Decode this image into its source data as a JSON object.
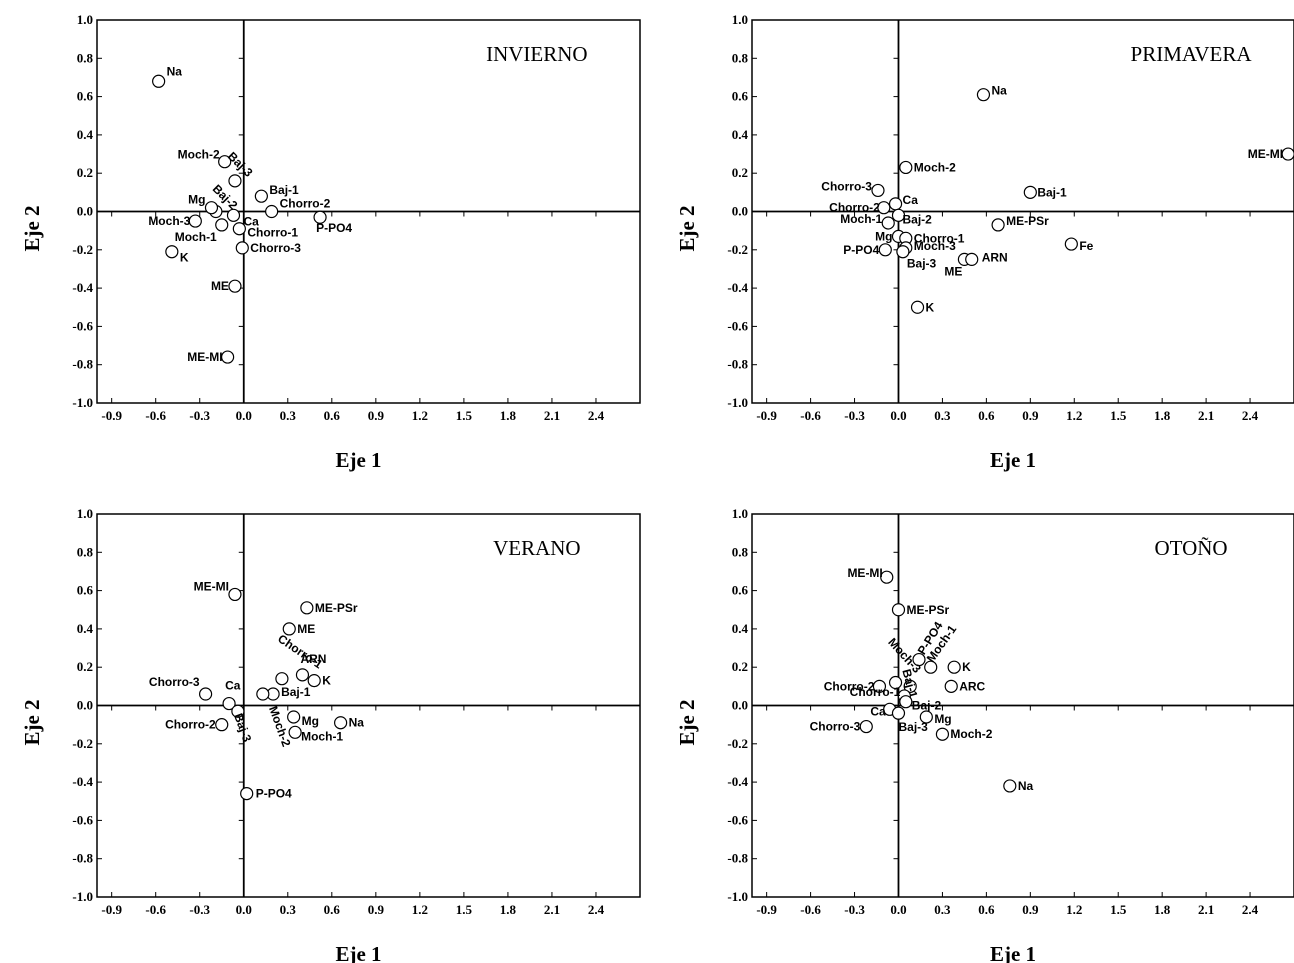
{
  "chart_data": [
    {
      "type": "scatter",
      "title": "INVIERNO",
      "xlabel": "Eje 1",
      "ylabel": "Eje 2",
      "xlim": [
        -1.0,
        2.7
      ],
      "ylim": [
        -1.0,
        1.0
      ],
      "x_ticks": [
        "-0.9",
        "-0.6",
        "-0.3",
        "0.0",
        "0.3",
        "0.6",
        "0.9",
        "1.2",
        "1.5",
        "1.8",
        "2.1",
        "2.4"
      ],
      "y_ticks": [
        "1.0",
        "0.8",
        "0.6",
        "0.4",
        "0.2",
        "0.0",
        "-0.2",
        "-0.4",
        "-0.6",
        "-0.8",
        "-1.0"
      ],
      "points": [
        {
          "label": "Na",
          "x": -0.58,
          "y": 0.68
        },
        {
          "label": "Moch-2",
          "x": -0.13,
          "y": 0.26
        },
        {
          "label": "Baj-3",
          "x": -0.06,
          "y": 0.16
        },
        {
          "label": "Baj-1",
          "x": 0.12,
          "y": 0.08
        },
        {
          "label": "Baj-2",
          "x": -0.19,
          "y": 0.0
        },
        {
          "label": "Mg",
          "x": -0.22,
          "y": 0.02
        },
        {
          "label": "Chorro-2",
          "x": 0.19,
          "y": 0.0
        },
        {
          "label": "Ca",
          "x": -0.07,
          "y": -0.02
        },
        {
          "label": "Moch-3",
          "x": -0.33,
          "y": -0.05
        },
        {
          "label": "Moch-1",
          "x": -0.15,
          "y": -0.07
        },
        {
          "label": "Chorro-1",
          "x": -0.03,
          "y": -0.09
        },
        {
          "label": "P-PO4",
          "x": 0.52,
          "y": -0.03
        },
        {
          "label": "Chorro-3",
          "x": -0.01,
          "y": -0.19
        },
        {
          "label": "K",
          "x": -0.49,
          "y": -0.21
        },
        {
          "label": "ME",
          "x": -0.06,
          "y": -0.39
        },
        {
          "label": "ME-MI",
          "x": -0.11,
          "y": -0.76
        }
      ]
    },
    {
      "type": "scatter",
      "title": "PRIMAVERA",
      "xlabel": "Eje 1",
      "ylabel": "Eje 2",
      "xlim": [
        -1.0,
        2.7
      ],
      "ylim": [
        -1.0,
        1.0
      ],
      "x_ticks": [
        "-0.9",
        "-0.6",
        "-0.3",
        "0.0",
        "0.3",
        "0.6",
        "0.9",
        "1.2",
        "1.5",
        "1.8",
        "2.1",
        "2.4"
      ],
      "y_ticks": [
        "1.0",
        "0.8",
        "0.6",
        "0.4",
        "0.2",
        "0.0",
        "-0.2",
        "-0.4",
        "-0.6",
        "-0.8",
        "-1.0"
      ],
      "points": [
        {
          "label": "Na",
          "x": 0.58,
          "y": 0.61
        },
        {
          "label": "ME-MI",
          "x": 2.66,
          "y": 0.3
        },
        {
          "label": "Moch-2",
          "x": 0.05,
          "y": 0.23
        },
        {
          "label": "Chorro-3",
          "x": -0.14,
          "y": 0.11
        },
        {
          "label": "Baj-1",
          "x": 0.9,
          "y": 0.1
        },
        {
          "label": "Chorro-2",
          "x": -0.1,
          "y": 0.02
        },
        {
          "label": "Ca",
          "x": -0.02,
          "y": 0.04
        },
        {
          "label": "Moch-1",
          "x": -0.07,
          "y": -0.06
        },
        {
          "label": "Baj-2",
          "x": 0.0,
          "y": -0.02
        },
        {
          "label": "ME-PSr",
          "x": 0.68,
          "y": -0.07
        },
        {
          "label": "Mg",
          "x": 0.0,
          "y": -0.13
        },
        {
          "label": "Chorro-1",
          "x": 0.05,
          "y": -0.14
        },
        {
          "label": "Moch-3",
          "x": 0.05,
          "y": -0.19
        },
        {
          "label": "P-PO4",
          "x": -0.09,
          "y": -0.2
        },
        {
          "label": "Baj-3",
          "x": 0.03,
          "y": -0.21
        },
        {
          "label": "ME",
          "x": 0.45,
          "y": -0.25
        },
        {
          "label": "ARN",
          "x": 0.5,
          "y": -0.25
        },
        {
          "label": "Fe",
          "x": 1.18,
          "y": -0.17
        },
        {
          "label": "K",
          "x": 0.13,
          "y": -0.5
        }
      ]
    },
    {
      "type": "scatter",
      "title": "VERANO",
      "xlabel": "Eje 1",
      "ylabel": "Eje 2",
      "xlim": [
        -1.0,
        2.7
      ],
      "ylim": [
        -1.0,
        1.0
      ],
      "x_ticks": [
        "-0.9",
        "-0.6",
        "-0.3",
        "0.0",
        "0.3",
        "0.6",
        "0.9",
        "1.2",
        "1.5",
        "1.8",
        "2.1",
        "2.4"
      ],
      "y_ticks": [
        "1.0",
        "0.8",
        "0.6",
        "0.4",
        "0.2",
        "0.0",
        "-0.2",
        "-0.4",
        "-0.6",
        "-0.8",
        "-1.0"
      ],
      "points": [
        {
          "label": "ME-MI",
          "x": -0.06,
          "y": 0.58
        },
        {
          "label": "ME-PSr",
          "x": 0.43,
          "y": 0.51
        },
        {
          "label": "ME",
          "x": 0.31,
          "y": 0.4
        },
        {
          "label": "Chorro-1",
          "x": 0.26,
          "y": 0.14
        },
        {
          "label": "ARN",
          "x": 0.4,
          "y": 0.16
        },
        {
          "label": "K",
          "x": 0.48,
          "y": 0.13
        },
        {
          "label": "Chorro-3",
          "x": -0.26,
          "y": 0.06
        },
        {
          "label": "Ca",
          "x": -0.1,
          "y": 0.01
        },
        {
          "label": "Baj-1",
          "x": 0.2,
          "y": 0.06
        },
        {
          "label": "Baj-3",
          "x": -0.04,
          "y": -0.03
        },
        {
          "label": "Moch-2",
          "x": 0.13,
          "y": 0.06
        },
        {
          "label": "Mg",
          "x": 0.34,
          "y": -0.06
        },
        {
          "label": "Chorro-2",
          "x": -0.15,
          "y": -0.1
        },
        {
          "label": "Na",
          "x": 0.66,
          "y": -0.09
        },
        {
          "label": "Moch-1",
          "x": 0.35,
          "y": -0.14
        },
        {
          "label": "P-PO4",
          "x": 0.02,
          "y": -0.46
        }
      ]
    },
    {
      "type": "scatter",
      "title": "OTOÑO",
      "xlabel": "Eje 1",
      "ylabel": "Eje 2",
      "xlim": [
        -1.0,
        2.7
      ],
      "ylim": [
        -1.0,
        1.0
      ],
      "x_ticks": [
        "-0.9",
        "-0.6",
        "-0.3",
        "0.0",
        "0.3",
        "0.6",
        "0.9",
        "1.2",
        "1.5",
        "1.8",
        "2.1",
        "2.4"
      ],
      "y_ticks": [
        "1.0",
        "0.8",
        "0.6",
        "0.4",
        "0.2",
        "0.0",
        "-0.2",
        "-0.4",
        "-0.6",
        "-0.8",
        "-1.0"
      ],
      "points": [
        {
          "label": "ME-MI",
          "x": -0.08,
          "y": 0.67
        },
        {
          "label": "ME-PSr",
          "x": 0.0,
          "y": 0.5
        },
        {
          "label": "P-PO4",
          "x": 0.14,
          "y": 0.24
        },
        {
          "label": "Moch-1",
          "x": 0.22,
          "y": 0.2
        },
        {
          "label": "K",
          "x": 0.38,
          "y": 0.2
        },
        {
          "label": "Moch-3",
          "x": -0.02,
          "y": 0.12
        },
        {
          "label": "Baj-1",
          "x": 0.08,
          "y": 0.1
        },
        {
          "label": "ARC",
          "x": 0.36,
          "y": 0.1
        },
        {
          "label": "Chorro-2",
          "x": -0.13,
          "y": 0.1
        },
        {
          "label": "Chorro-1",
          "x": 0.04,
          "y": 0.05
        },
        {
          "label": "Baj-2",
          "x": 0.05,
          "y": 0.02
        },
        {
          "label": "Ca",
          "x": -0.06,
          "y": -0.02
        },
        {
          "label": "Baj-3",
          "x": 0.0,
          "y": -0.04
        },
        {
          "label": "Mg",
          "x": 0.19,
          "y": -0.06
        },
        {
          "label": "Chorro-3",
          "x": -0.22,
          "y": -0.11
        },
        {
          "label": "Moch-2",
          "x": 0.3,
          "y": -0.15
        },
        {
          "label": "Na",
          "x": 0.76,
          "y": -0.42
        }
      ]
    }
  ]
}
